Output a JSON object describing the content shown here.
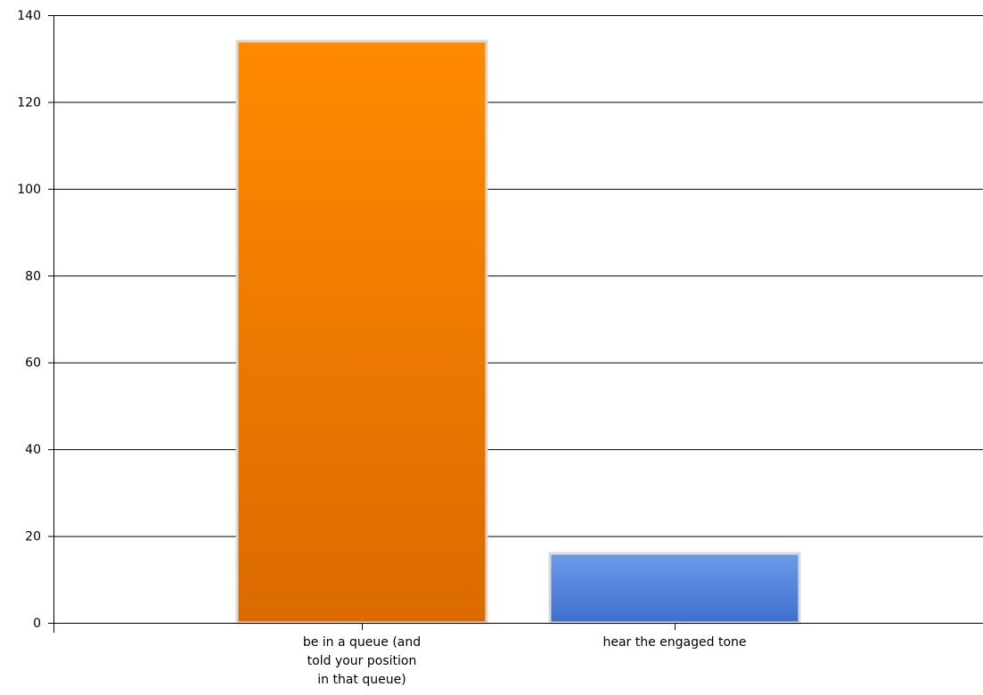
{
  "chart_data": {
    "type": "bar",
    "categories": [
      [
        "be in a queue (and",
        "told your position",
        "in that queue)"
      ],
      [
        "hear the engaged tone"
      ]
    ],
    "values": [
      134,
      16
    ],
    "bar_colors": [
      {
        "top": "#ff8a00",
        "bottom": "#db6a00",
        "border": "#d9d9d9"
      },
      {
        "top": "#6a9bea",
        "bottom": "#3f6fcc",
        "border": "#d9d9d9"
      }
    ],
    "yticks": [
      0,
      20,
      40,
      60,
      80,
      100,
      120,
      140
    ],
    "ylim": [
      0,
      140
    ],
    "grid": true,
    "legend": "none"
  }
}
